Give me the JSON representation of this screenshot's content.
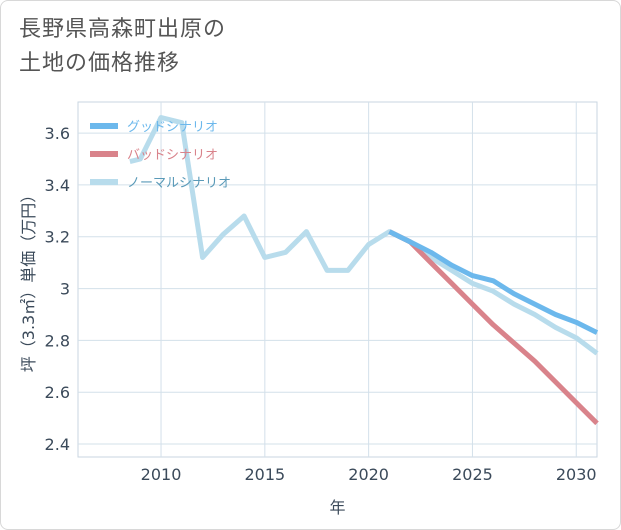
{
  "title": "長野県高森町出原の\n土地の価格推移",
  "chart_data": {
    "type": "line",
    "xlabel": "年",
    "ylabel": "坪（3.3㎡）単価（万円）",
    "xlim": [
      2006,
      2031
    ],
    "ylim": [
      2.35,
      3.72
    ],
    "x_ticks": [
      "2010",
      "2015",
      "2020",
      "2025",
      "2030"
    ],
    "y_ticks": [
      "2.4",
      "2.6",
      "2.8",
      "3",
      "3.2",
      "3.4",
      "3.6"
    ],
    "grid": true,
    "legend_position": "top-left",
    "series": [
      {
        "name": "グッドシナリオ",
        "color": "#6cb8ec",
        "points": [
          [
            2021,
            3.22
          ],
          [
            2022,
            3.18
          ],
          [
            2023,
            3.14
          ],
          [
            2024,
            3.09
          ],
          [
            2025,
            3.05
          ],
          [
            2026,
            3.03
          ],
          [
            2027,
            2.98
          ],
          [
            2028,
            2.94
          ],
          [
            2029,
            2.9
          ],
          [
            2030,
            2.87
          ],
          [
            2031,
            2.83
          ]
        ]
      },
      {
        "name": "バッドシナリオ",
        "color": "#d9838b",
        "points": [
          [
            2021,
            3.22
          ],
          [
            2022,
            3.18
          ],
          [
            2023,
            3.1
          ],
          [
            2024,
            3.02
          ],
          [
            2025,
            2.94
          ],
          [
            2026,
            2.86
          ],
          [
            2027,
            2.79
          ],
          [
            2028,
            2.72
          ],
          [
            2029,
            2.64
          ],
          [
            2030,
            2.56
          ],
          [
            2031,
            2.48
          ]
        ]
      },
      {
        "name": "ノーマルシナリオ",
        "color": "#b8dcec",
        "points": [
          [
            2008.5,
            3.49
          ],
          [
            2009,
            3.5
          ],
          [
            2010,
            3.66
          ],
          [
            2011,
            3.64
          ],
          [
            2012,
            3.12
          ],
          [
            2013,
            3.21
          ],
          [
            2014,
            3.28
          ],
          [
            2015,
            3.12
          ],
          [
            2016,
            3.14
          ],
          [
            2017,
            3.22
          ],
          [
            2018,
            3.07
          ],
          [
            2019,
            3.07
          ],
          [
            2020,
            3.17
          ],
          [
            2021,
            3.22
          ],
          [
            2022,
            3.18
          ],
          [
            2023,
            3.12
          ],
          [
            2024,
            3.07
          ],
          [
            2025,
            3.02
          ],
          [
            2026,
            2.99
          ],
          [
            2027,
            2.94
          ],
          [
            2028,
            2.9
          ],
          [
            2029,
            2.85
          ],
          [
            2030,
            2.81
          ],
          [
            2031,
            2.75
          ]
        ]
      }
    ]
  }
}
